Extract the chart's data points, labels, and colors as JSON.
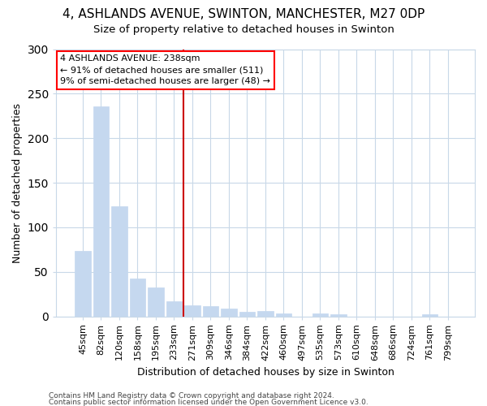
{
  "title1": "4, ASHLANDS AVENUE, SWINTON, MANCHESTER, M27 0DP",
  "title2": "Size of property relative to detached houses in Swinton",
  "xlabel": "Distribution of detached houses by size in Swinton",
  "ylabel": "Number of detached properties",
  "footer1": "Contains HM Land Registry data © Crown copyright and database right 2024.",
  "footer2": "Contains public sector information licensed under the Open Government Licence v3.0.",
  "bar_color": "#c5d8ef",
  "bar_edge_color": "#c5d8ef",
  "annotation_line1": "4 ASHLANDS AVENUE: 238sqm",
  "annotation_line2": "← 91% of detached houses are smaller (511)",
  "annotation_line3": "9% of semi-detached houses are larger (48) →",
  "vline_color": "#cc0000",
  "vline_x_index": 5,
  "categories": [
    "45sqm",
    "82sqm",
    "120sqm",
    "158sqm",
    "195sqm",
    "233sqm",
    "271sqm",
    "309sqm",
    "346sqm",
    "384sqm",
    "422sqm",
    "460sqm",
    "497sqm",
    "535sqm",
    "573sqm",
    "610sqm",
    "648sqm",
    "686sqm",
    "724sqm",
    "761sqm",
    "799sqm"
  ],
  "values": [
    73,
    236,
    124,
    42,
    32,
    17,
    12,
    11,
    9,
    5,
    6,
    3,
    0,
    3,
    2,
    0,
    0,
    0,
    0,
    2,
    0
  ],
  "ylim": [
    0,
    300
  ],
  "yticks": [
    0,
    50,
    100,
    150,
    200,
    250,
    300
  ],
  "bg_color": "#ffffff",
  "plot_bg_color": "#ffffff",
  "grid_color": "#c8d8e8",
  "title1_fontsize": 11,
  "title2_fontsize": 9.5,
  "ylabel_fontsize": 9,
  "xlabel_fontsize": 9,
  "tick_fontsize": 8,
  "footer_fontsize": 6.5
}
